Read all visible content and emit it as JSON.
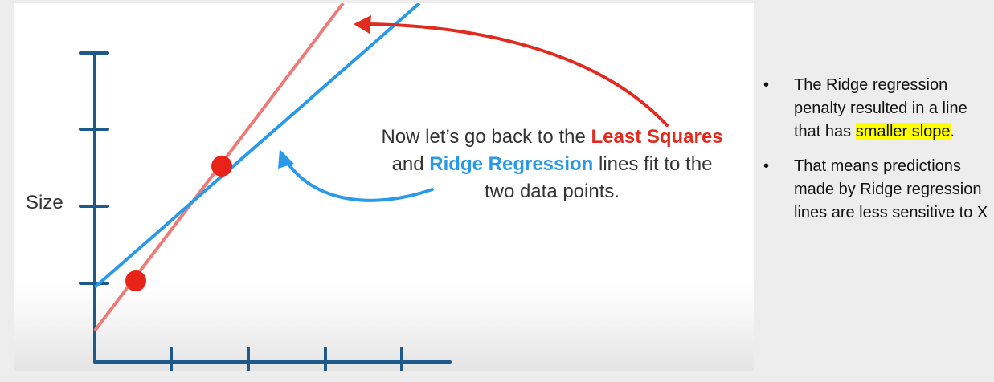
{
  "figure": {
    "axis_label_y": "Size",
    "caption": {
      "line1_prefix": "Now let’s go back to the ",
      "least_squares": "Least Squares",
      "line2_prefix": "and ",
      "ridge_regression": "Ridge Regression",
      "line2_suffix": " lines fit to the",
      "line3": "two data points."
    },
    "colors": {
      "axis": "#1d5a8a",
      "least_squares_line": "#ee7b78",
      "ridge_line": "#2a9ae8",
      "data_point": "#e8231a",
      "arrow_red": "#e02b20",
      "arrow_blue": "#2a9ae8"
    }
  },
  "notes": {
    "bullet": "•",
    "items": [
      {
        "before": "The Ridge regression penalty resulted in a line that has ",
        "highlight": "smaller slope",
        "after": "."
      },
      {
        "before": "That means predictions made by Ridge regression lines are less sensitive to X",
        "highlight": "",
        "after": ""
      }
    ]
  }
}
